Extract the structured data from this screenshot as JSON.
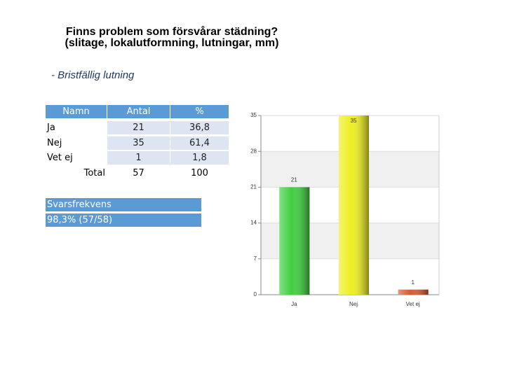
{
  "header": {
    "title": "Finns problem som försvårar städning?",
    "title2": "(slitage, lokalutformning, lutningar, mm)",
    "subtitle": "- Bristfällig lutning"
  },
  "table": {
    "columns": [
      "Namn",
      "Antal",
      "%"
    ],
    "rows": [
      [
        "Ja",
        21,
        "36,8"
      ],
      [
        "Nej",
        35,
        "61,4"
      ],
      [
        "Vet ej",
        1,
        "1,8"
      ],
      [
        "Total",
        57,
        100
      ]
    ]
  },
  "response": {
    "label": "Svarsfrekvens",
    "value": "98,3% (57/58)"
  },
  "chart_data": {
    "type": "bar",
    "categories": [
      "Ja",
      "Nej",
      "Vet ej"
    ],
    "values": [
      21,
      35,
      1
    ],
    "colors": [
      "#3fcf3f",
      "#eeee22",
      "#d45a35"
    ],
    "ylim": [
      0,
      35
    ],
    "yticks": [
      0,
      7,
      14,
      21,
      28,
      35
    ],
    "grid": true
  }
}
